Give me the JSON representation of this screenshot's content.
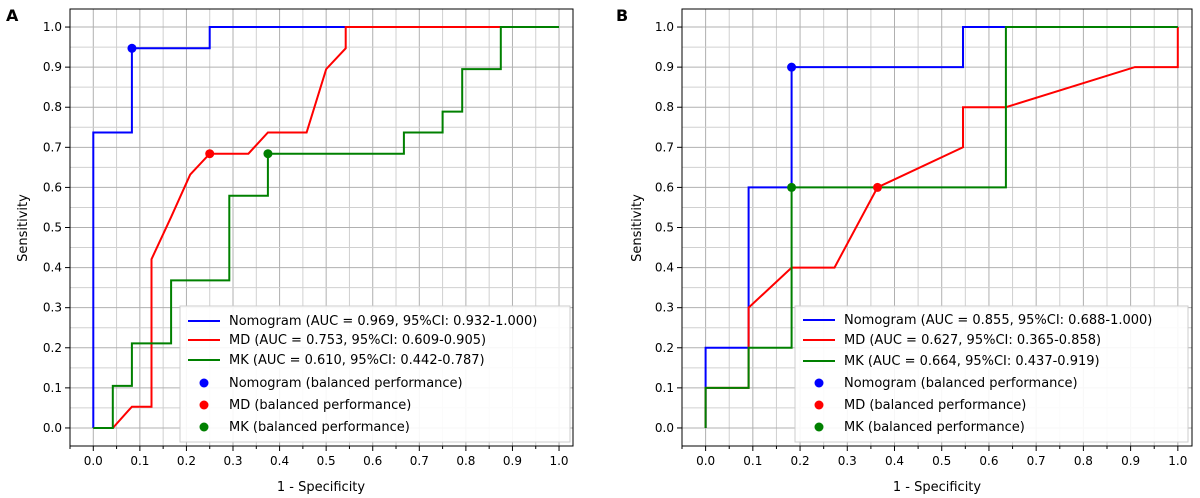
{
  "chart_data": [
    {
      "type": "line",
      "panel": "A",
      "xlabel": "1 - Specificity",
      "ylabel": "Sensitivity",
      "xlim": [
        -0.05,
        1.03
      ],
      "ylim": [
        -0.045,
        1.045
      ],
      "x_ticks": [
        "0.0",
        "0.1",
        "0.2",
        "0.3",
        "0.4",
        "0.5",
        "0.6",
        "0.7",
        "0.8",
        "0.9",
        "1.0"
      ],
      "y_ticks": [
        "0.0",
        "0.1",
        "0.2",
        "0.3",
        "0.4",
        "0.5",
        "0.6",
        "0.7",
        "0.8",
        "0.9",
        "1.0"
      ],
      "grid": true,
      "legend_position": "bottom-right",
      "series": [
        {
          "name": "Nomogram (AUC = 0.969, 95%CI: 0.932-1.000)",
          "color": "#0000ff",
          "points": [
            [
              0,
              0
            ],
            [
              0,
              0.737
            ],
            [
              0.083,
              0.737
            ],
            [
              0.083,
              0.947
            ],
            [
              0.25,
              0.947
            ],
            [
              0.25,
              1.0
            ],
            [
              1.0,
              1.0
            ]
          ]
        },
        {
          "name": "MD (AUC = 0.753, 95%CI: 0.609-0.905)",
          "color": "#ff0000",
          "points": [
            [
              0,
              0
            ],
            [
              0.042,
              0
            ],
            [
              0.083,
              0.053
            ],
            [
              0.125,
              0.053
            ],
            [
              0.125,
              0.421
            ],
            [
              0.167,
              0.526
            ],
            [
              0.208,
              0.632
            ],
            [
              0.25,
              0.684
            ],
            [
              0.333,
              0.684
            ],
            [
              0.375,
              0.737
            ],
            [
              0.458,
              0.737
            ],
            [
              0.5,
              0.895
            ],
            [
              0.542,
              0.947
            ],
            [
              0.542,
              1.0
            ],
            [
              1.0,
              1.0
            ]
          ]
        },
        {
          "name": "MK (AUC = 0.610, 95%CI: 0.442-0.787)",
          "color": "#008000",
          "points": [
            [
              0,
              0
            ],
            [
              0.042,
              0
            ],
            [
              0.042,
              0.105
            ],
            [
              0.083,
              0.105
            ],
            [
              0.083,
              0.211
            ],
            [
              0.167,
              0.211
            ],
            [
              0.167,
              0.368
            ],
            [
              0.292,
              0.368
            ],
            [
              0.292,
              0.579
            ],
            [
              0.375,
              0.579
            ],
            [
              0.375,
              0.684
            ],
            [
              0.667,
              0.684
            ],
            [
              0.667,
              0.737
            ],
            [
              0.75,
              0.737
            ],
            [
              0.75,
              0.789
            ],
            [
              0.792,
              0.789
            ],
            [
              0.792,
              0.895
            ],
            [
              0.875,
              0.895
            ],
            [
              0.875,
              1.0
            ],
            [
              1.0,
              1.0
            ]
          ]
        }
      ],
      "balanced_points": [
        {
          "name": "Nomogram (balanced performance)",
          "color": "#0000ff",
          "x": 0.083,
          "y": 0.947
        },
        {
          "name": "MD (balanced performance)",
          "color": "#ff0000",
          "x": 0.25,
          "y": 0.684
        },
        {
          "name": "MK (balanced performance)",
          "color": "#008000",
          "x": 0.375,
          "y": 0.684
        }
      ]
    },
    {
      "type": "line",
      "panel": "B",
      "xlabel": "1 - Specificity",
      "ylabel": "Sensitivity",
      "xlim": [
        -0.05,
        1.03
      ],
      "ylim": [
        -0.045,
        1.045
      ],
      "x_ticks": [
        "0.0",
        "0.1",
        "0.2",
        "0.3",
        "0.4",
        "0.5",
        "0.6",
        "0.7",
        "0.8",
        "0.9",
        "1.0"
      ],
      "y_ticks": [
        "0.0",
        "0.1",
        "0.2",
        "0.3",
        "0.4",
        "0.5",
        "0.6",
        "0.7",
        "0.8",
        "0.9",
        "1.0"
      ],
      "grid": true,
      "legend_position": "bottom-right",
      "series": [
        {
          "name": "Nomogram (AUC = 0.855, 95%CI: 0.688-1.000)",
          "color": "#0000ff",
          "points": [
            [
              0,
              0
            ],
            [
              0,
              0.2
            ],
            [
              0.091,
              0.2
            ],
            [
              0.091,
              0.6
            ],
            [
              0.182,
              0.6
            ],
            [
              0.182,
              0.9
            ],
            [
              0.545,
              0.9
            ],
            [
              0.545,
              1.0
            ],
            [
              1.0,
              1.0
            ]
          ]
        },
        {
          "name": "MD (AUC = 0.627, 95%CI: 0.365-0.858)",
          "color": "#ff0000",
          "points": [
            [
              0,
              0
            ],
            [
              0,
              0.1
            ],
            [
              0.091,
              0.1
            ],
            [
              0.091,
              0.3
            ],
            [
              0.182,
              0.4
            ],
            [
              0.273,
              0.4
            ],
            [
              0.364,
              0.6
            ],
            [
              0.545,
              0.7
            ],
            [
              0.545,
              0.8
            ],
            [
              0.636,
              0.8
            ],
            [
              0.909,
              0.9
            ],
            [
              1.0,
              0.9
            ],
            [
              1.0,
              1.0
            ]
          ]
        },
        {
          "name": "MK (AUC = 0.664, 95%CI: 0.437-0.919)",
          "color": "#008000",
          "points": [
            [
              0,
              0
            ],
            [
              0,
              0.1
            ],
            [
              0.091,
              0.1
            ],
            [
              0.091,
              0.2
            ],
            [
              0.182,
              0.2
            ],
            [
              0.182,
              0.6
            ],
            [
              0.636,
              0.6
            ],
            [
              0.636,
              1.0
            ],
            [
              1.0,
              1.0
            ]
          ]
        }
      ],
      "balanced_points": [
        {
          "name": "Nomogram (balanced performance)",
          "color": "#0000ff",
          "x": 0.182,
          "y": 0.9
        },
        {
          "name": "MD (balanced performance)",
          "color": "#ff0000",
          "x": 0.364,
          "y": 0.6
        },
        {
          "name": "MK (balanced performance)",
          "color": "#008000",
          "x": 0.182,
          "y": 0.6
        }
      ]
    }
  ]
}
